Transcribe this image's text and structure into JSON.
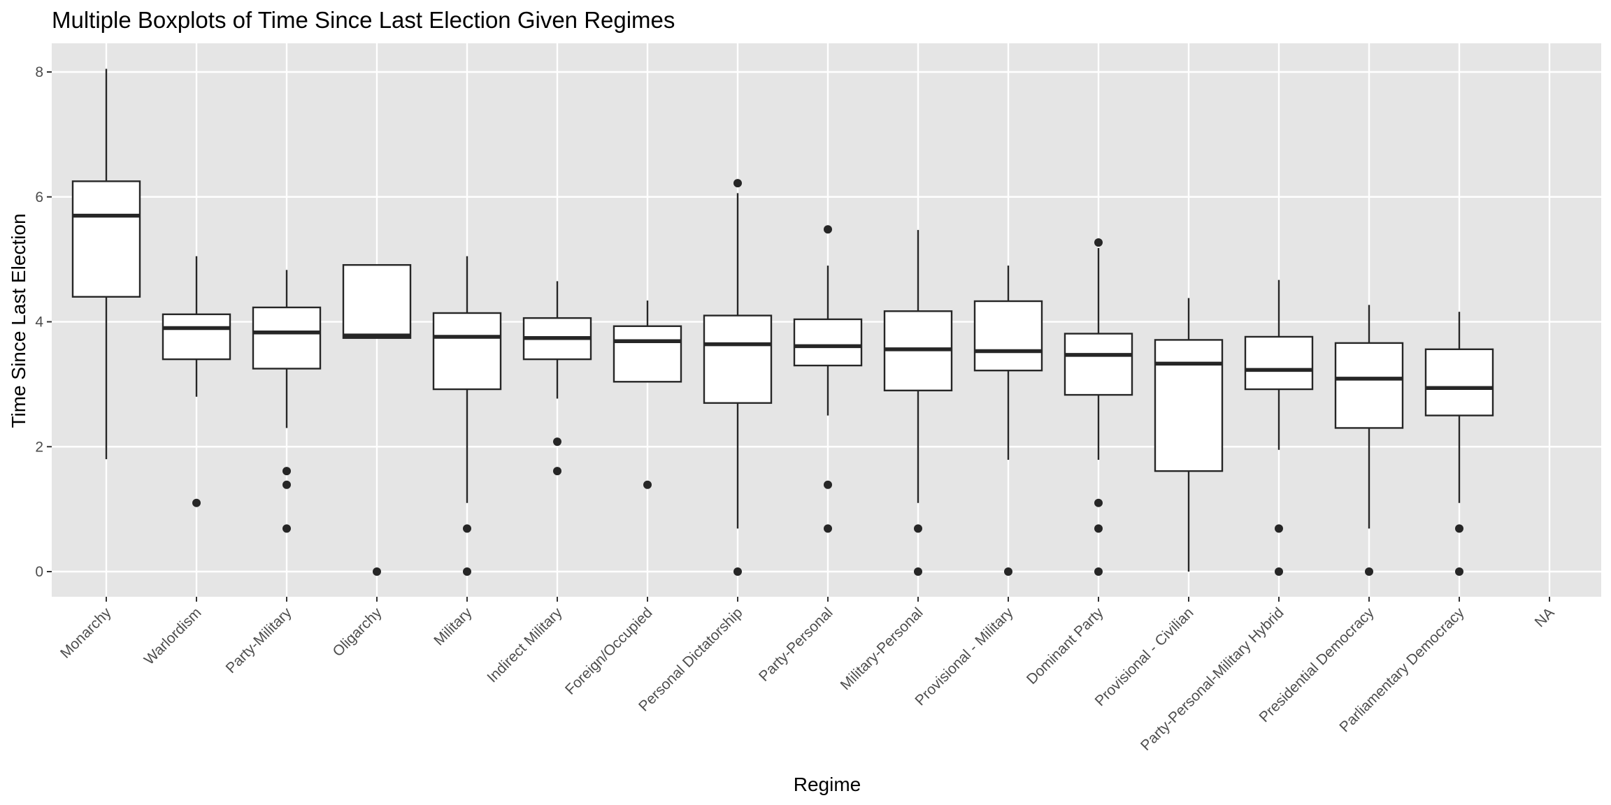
{
  "chart_data": {
    "type": "boxplot",
    "title": "Multiple Boxplots of Time Since Last Election Given Regimes",
    "xlabel": "Regime",
    "ylabel": "Time Since Last Election",
    "ylim": [
      -0.4,
      8.4
    ],
    "yticks": [
      0,
      2,
      4,
      6,
      8
    ],
    "grid": true,
    "legend": "none",
    "colors": {
      "panel_background": "#e5e5e5",
      "gridline": "#ffffff",
      "box_fill": "#ffffff",
      "box_stroke": "#262626",
      "outlier": "#262626",
      "tick_text": "#4d4d4d",
      "axis_ticks": "#333333",
      "title_text": "#000000"
    },
    "categories": [
      "Monarchy",
      "Warlordism",
      "Party-Military",
      "Oligarchy",
      "Military",
      "Indirect Military",
      "Foreign/Occupied",
      "Personal Dictatorship",
      "Party-Personal",
      "Military-Personal",
      "Provisional - Military",
      "Dominant Party",
      "Provisional - Civilian",
      "Party-Personal-Military Hybrid",
      "Presidential Democracy",
      "Parliamentary Democracy",
      "NA"
    ],
    "boxes": [
      {
        "category": "Monarchy",
        "whisker_low": 1.8,
        "q1": 4.4,
        "median": 5.7,
        "q3": 6.25,
        "whisker_high": 8.05,
        "outliers": []
      },
      {
        "category": "Warlordism",
        "whisker_low": 2.8,
        "q1": 3.4,
        "median": 3.9,
        "q3": 4.12,
        "whisker_high": 5.05,
        "outliers": [
          1.1
        ]
      },
      {
        "category": "Party-Military",
        "whisker_low": 2.3,
        "q1": 3.25,
        "median": 3.83,
        "q3": 4.23,
        "whisker_high": 4.83,
        "outliers": [
          1.61,
          1.39,
          0.69
        ]
      },
      {
        "category": "Oligarchy",
        "whisker_low": 3.74,
        "q1": 3.74,
        "median": 3.78,
        "q3": 4.91,
        "whisker_high": 4.91,
        "outliers": [
          0
        ]
      },
      {
        "category": "Military",
        "whisker_low": 1.1,
        "q1": 2.92,
        "median": 3.76,
        "q3": 4.14,
        "whisker_high": 5.05,
        "outliers": [
          0.69,
          0
        ]
      },
      {
        "category": "Indirect Military",
        "whisker_low": 2.77,
        "q1": 3.4,
        "median": 3.74,
        "q3": 4.06,
        "whisker_high": 4.65,
        "outliers": [
          2.08,
          1.61
        ]
      },
      {
        "category": "Foreign/Occupied",
        "whisker_low": 3.04,
        "q1": 3.04,
        "median": 3.69,
        "q3": 3.93,
        "whisker_high": 4.34,
        "outliers": [
          1.39
        ]
      },
      {
        "category": "Personal Dictatorship",
        "whisker_low": 0.69,
        "q1": 2.7,
        "median": 3.64,
        "q3": 4.1,
        "whisker_high": 6.06,
        "outliers": [
          6.22,
          0
        ]
      },
      {
        "category": "Party-Personal",
        "whisker_low": 2.5,
        "q1": 3.3,
        "median": 3.61,
        "q3": 4.04,
        "whisker_high": 4.9,
        "outliers": [
          5.48,
          1.39,
          0.69
        ]
      },
      {
        "category": "Military-Personal",
        "whisker_low": 1.1,
        "q1": 2.9,
        "median": 3.56,
        "q3": 4.17,
        "whisker_high": 5.47,
        "outliers": [
          0.69,
          0
        ]
      },
      {
        "category": "Provisional - Military",
        "whisker_low": 1.79,
        "q1": 3.22,
        "median": 3.53,
        "q3": 4.33,
        "whisker_high": 4.9,
        "outliers": [
          0
        ]
      },
      {
        "category": "Dominant Party",
        "whisker_low": 1.79,
        "q1": 2.83,
        "median": 3.47,
        "q3": 3.81,
        "whisker_high": 5.18,
        "outliers": [
          5.27,
          1.1,
          0.69,
          0
        ]
      },
      {
        "category": "Provisional - Civilian",
        "whisker_low": 0,
        "q1": 1.61,
        "median": 3.33,
        "q3": 3.71,
        "whisker_high": 4.38,
        "outliers": []
      },
      {
        "category": "Party-Personal-Military Hybrid",
        "whisker_low": 1.95,
        "q1": 2.92,
        "median": 3.23,
        "q3": 3.76,
        "whisker_high": 4.67,
        "outliers": [
          0.69,
          0
        ]
      },
      {
        "category": "Presidential Democracy",
        "whisker_low": 0.69,
        "q1": 2.3,
        "median": 3.09,
        "q3": 3.66,
        "whisker_high": 4.27,
        "outliers": [
          0
        ]
      },
      {
        "category": "Parliamentary Democracy",
        "whisker_low": 1.1,
        "q1": 2.5,
        "median": 2.94,
        "q3": 3.56,
        "whisker_high": 4.16,
        "outliers": [
          0.69,
          0
        ]
      },
      {
        "category": "NA",
        "whisker_low": null,
        "q1": null,
        "median": null,
        "q3": null,
        "whisker_high": null,
        "outliers": []
      }
    ]
  }
}
